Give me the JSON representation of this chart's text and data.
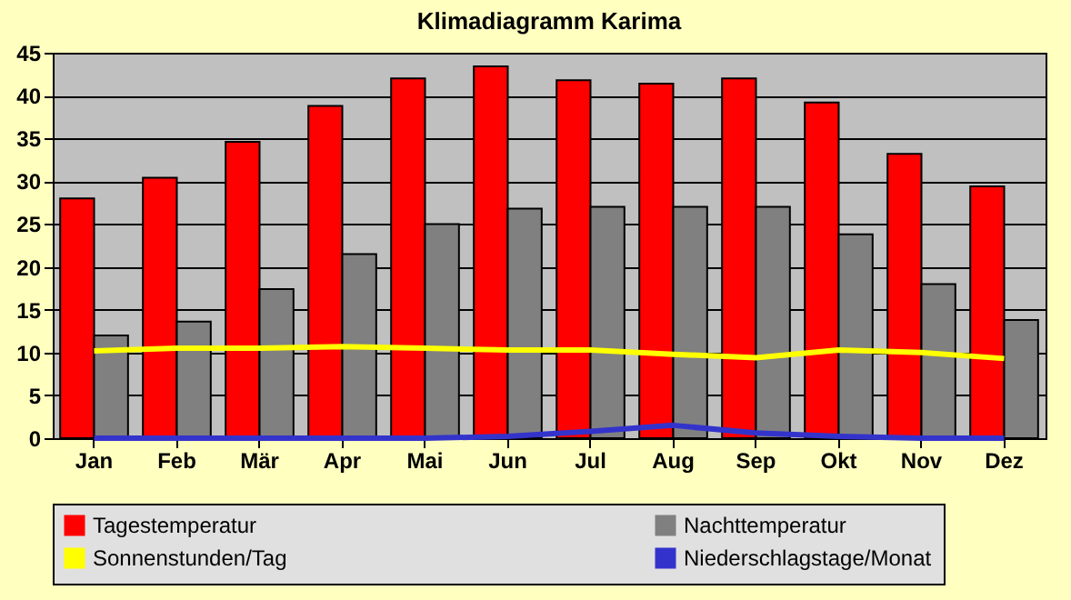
{
  "chart_data": {
    "type": "bar",
    "title": "Klimadiagramm Karima",
    "categories": [
      "Jan",
      "Feb",
      "Mär",
      "Apr",
      "Mai",
      "Jun",
      "Jul",
      "Aug",
      "Sep",
      "Okt",
      "Nov",
      "Dez"
    ],
    "series": [
      {
        "name": "Tagestemperatur",
        "color": "#ff0000",
        "values": [
          28,
          30.4,
          34.6,
          38.8,
          42,
          43.4,
          41.8,
          41.4,
          42,
          39.2,
          33.2,
          29.4
        ]
      },
      {
        "name": "Nachttemperatur",
        "color": "#808080",
        "values": [
          12,
          13.6,
          17.4,
          21.5,
          25,
          26.8,
          27,
          27,
          27,
          23.8,
          18,
          13.8
        ]
      },
      {
        "name": "Sonnenstunden/Tag",
        "type": "line",
        "color": "#ffff00",
        "values": [
          10.2,
          10.5,
          10.5,
          10.7,
          10.5,
          10.3,
          10.3,
          9.8,
          9.4,
          10.3,
          10.0,
          9.3
        ]
      },
      {
        "name": "Niederschlagstage/Monat",
        "type": "line",
        "color": "#3333cc",
        "values": [
          0,
          0,
          0,
          0,
          0,
          0.2,
          0.8,
          1.5,
          0.6,
          0.2,
          0,
          0
        ]
      }
    ],
    "ylim": [
      0,
      45
    ],
    "yticks": [
      0,
      5,
      10,
      15,
      20,
      25,
      30,
      35,
      40,
      45
    ],
    "grid": "y",
    "legend": "bottom",
    "marker": "none",
    "line_style": "solid"
  }
}
